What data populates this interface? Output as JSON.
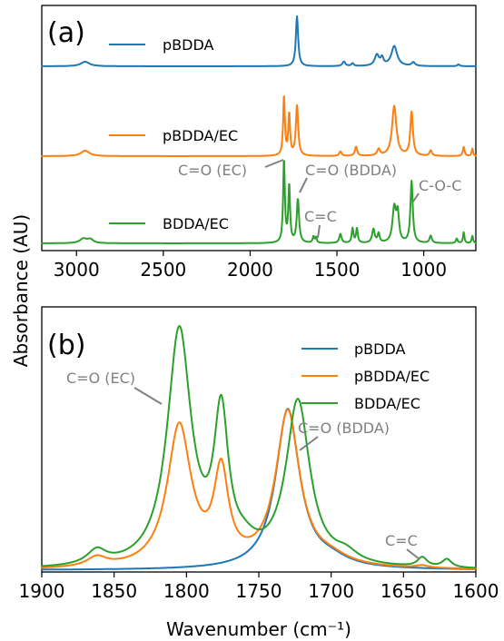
{
  "ylabel_shared": "Absorbance (AU)",
  "colors": {
    "pBDDA": "#1f77b4",
    "pBDDA/EC": "#ff7f0e",
    "BDDA/EC": "#2ca02c",
    "annotation": "#808080"
  },
  "chart_data": [
    {
      "panel": "(a)",
      "type": "line",
      "xlabel": "",
      "ylabel": "Absorbance (AU)",
      "xlim": [
        3200,
        700
      ],
      "x_reversed": true,
      "xticks": [
        3000,
        2500,
        2000,
        1500,
        1000
      ],
      "xtick_labels": [
        "3000",
        "2500",
        "2000",
        "1500",
        "1000"
      ],
      "y_ticks_shown": false,
      "legend": "inline labels",
      "series": [
        {
          "name": "pBDDA",
          "offset": 2.0,
          "peaks": [
            [
              2950,
              0.05,
              30
            ],
            [
              1730,
              0.55,
              8
            ],
            [
              1460,
              0.05,
              10
            ],
            [
              1410,
              0.03,
              8
            ],
            [
              1270,
              0.12,
              15
            ],
            [
              1240,
              0.08,
              10
            ],
            [
              1170,
              0.22,
              20
            ],
            [
              1060,
              0.04,
              12
            ],
            [
              800,
              0.02,
              8
            ]
          ]
        },
        {
          "name": "pBDDA/EC",
          "offset": 1.0,
          "peaks": [
            [
              2950,
              0.06,
              30
            ],
            [
              1805,
              0.65,
              6
            ],
            [
              1775,
              0.45,
              6
            ],
            [
              1730,
              0.55,
              8
            ],
            [
              1480,
              0.05,
              8
            ],
            [
              1390,
              0.1,
              8
            ],
            [
              1260,
              0.07,
              10
            ],
            [
              1170,
              0.55,
              15
            ],
            [
              1070,
              0.48,
              9
            ],
            [
              960,
              0.06,
              8
            ],
            [
              770,
              0.1,
              6
            ],
            [
              720,
              0.08,
              5
            ]
          ]
        },
        {
          "name": "BDDA/EC",
          "offset": 0.0,
          "peaks": [
            [
              2960,
              0.05,
              25
            ],
            [
              2920,
              0.04,
              20
            ],
            [
              1805,
              0.9,
              6
            ],
            [
              1775,
              0.62,
              6
            ],
            [
              1725,
              0.48,
              8
            ],
            [
              1635,
              0.07,
              6
            ],
            [
              1620,
              0.06,
              5
            ],
            [
              1480,
              0.1,
              8
            ],
            [
              1410,
              0.16,
              6
            ],
            [
              1385,
              0.16,
              6
            ],
            [
              1290,
              0.15,
              9
            ],
            [
              1260,
              0.1,
              7
            ],
            [
              1170,
              0.38,
              12
            ],
            [
              1150,
              0.3,
              9
            ],
            [
              1070,
              0.68,
              8
            ],
            [
              960,
              0.08,
              8
            ],
            [
              810,
              0.05,
              6
            ],
            [
              770,
              0.12,
              5
            ],
            [
              720,
              0.08,
              5
            ]
          ]
        }
      ],
      "annotations": [
        {
          "text": "C=O (EC)",
          "x": 1805
        },
        {
          "text": "C=O (BDDA)",
          "x": 1725
        },
        {
          "text": "C=C",
          "x": 1635
        },
        {
          "text": "C-O-C",
          "x": 1070
        }
      ]
    },
    {
      "panel": "(b)",
      "type": "line",
      "xlabel": "Wavenumber (cm⁻¹)",
      "ylabel": "Absorbance (AU)",
      "xlim": [
        1900,
        1600
      ],
      "x_reversed": true,
      "xticks": [
        1900,
        1850,
        1800,
        1750,
        1700,
        1650,
        1600
      ],
      "xtick_labels": [
        "1900",
        "1850",
        "1800",
        "1750",
        "1700",
        "1650",
        "1600"
      ],
      "ylim": [
        0,
        1.0
      ],
      "y_ticks_shown": false,
      "legend": "top-right",
      "series": [
        {
          "name": "pBDDA",
          "peaks": [
            [
              1730,
              0.68,
              10
            ],
            [
              1700,
              0.03,
              15
            ]
          ]
        },
        {
          "name": "pBDDA/EC",
          "peaks": [
            [
              1862,
              0.04,
              8
            ],
            [
              1805,
              0.6,
              10
            ],
            [
              1776,
              0.38,
              6
            ],
            [
              1730,
              0.66,
              10
            ],
            [
              1700,
              0.03,
              15
            ],
            [
              1637,
              0.01,
              5
            ]
          ]
        },
        {
          "name": "BDDA/EC",
          "peaks": [
            [
              1862,
              0.06,
              8
            ],
            [
              1805,
              1.0,
              10
            ],
            [
              1776,
              0.6,
              6
            ],
            [
              1723,
              0.7,
              10
            ],
            [
              1760,
              0.05,
              10
            ],
            [
              1690,
              0.04,
              10
            ],
            [
              1637,
              0.04,
              4
            ],
            [
              1620,
              0.035,
              4
            ]
          ]
        }
      ],
      "annotations": [
        {
          "text": "C=O (EC)",
          "x": 1810
        },
        {
          "text": "C=O (BDDA)",
          "x": 1727
        },
        {
          "text": "C=C",
          "x": 1637
        }
      ]
    }
  ]
}
